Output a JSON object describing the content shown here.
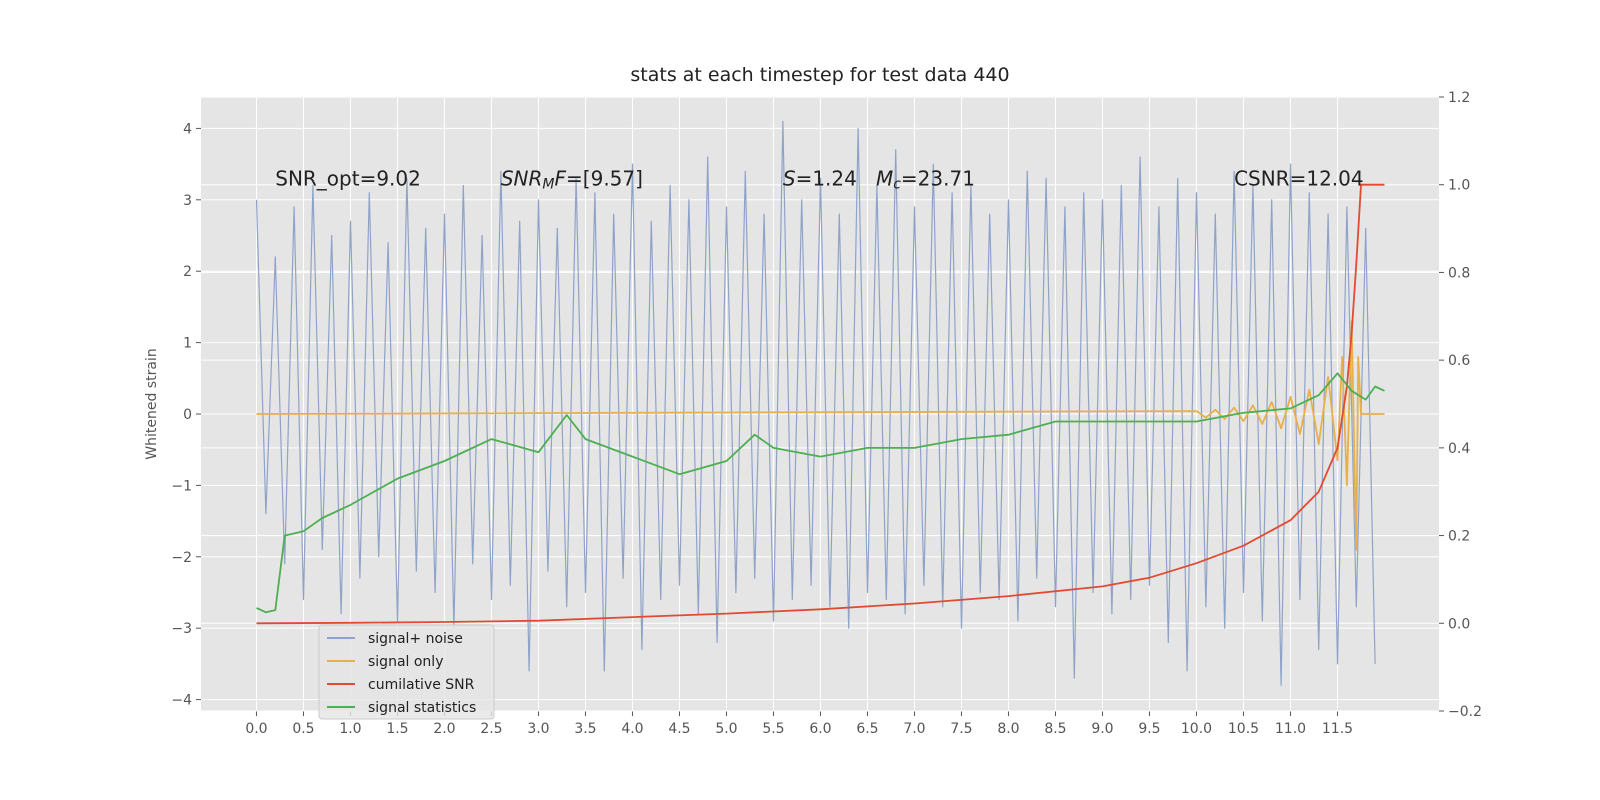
{
  "chart_data": {
    "type": "line",
    "title": "stats at each timestep for test data 440",
    "ylabel": "Whitened strain",
    "xlim": [
      -0.59,
      12.58
    ],
    "ylim": [
      -4.16,
      4.44
    ],
    "y2lim": [
      -0.2,
      1.2
    ],
    "grid": true,
    "legend": "lower left",
    "xticks": [
      {
        "value": 0,
        "label": "0.0"
      },
      0.5,
      {
        "value": 1,
        "label": "1.0"
      },
      1.5,
      {
        "value": 2,
        "label": "2.0"
      },
      2.5,
      {
        "value": 3,
        "label": "3.0"
      },
      3.5,
      {
        "value": 4,
        "label": "4.0"
      },
      4.5,
      {
        "value": 5,
        "label": "5.0"
      },
      5.5,
      {
        "value": 6,
        "label": "6.0"
      },
      6.5,
      {
        "value": 7,
        "label": "7.0"
      },
      7.5,
      {
        "value": 8,
        "label": "8.0"
      },
      8.5,
      {
        "value": 9,
        "label": "9.0"
      },
      9.5,
      {
        "value": 10,
        "label": "10.0"
      },
      10.5,
      {
        "value": 11,
        "label": "11.0"
      },
      11.5
    ],
    "yticks": [
      {
        "value": -4,
        "label": "−4"
      },
      {
        "value": -3,
        "label": "−3"
      },
      {
        "value": -2,
        "label": "−2"
      },
      {
        "value": -1,
        "label": "−1"
      },
      0,
      1,
      2,
      3,
      4
    ],
    "y2ticks": [
      {
        "value": -0.2,
        "label": "−0.2"
      },
      {
        "value": 0,
        "label": "0.0"
      },
      0.2,
      0.4,
      0.6,
      0.8,
      {
        "value": 1,
        "label": "1.0"
      },
      1.2
    ],
    "annotations": [
      {
        "x": 0.2,
        "y": 3.2,
        "parts": [
          {
            "text": "SNR_opt=9.02"
          }
        ]
      },
      {
        "x": 2.6,
        "y": 3.2,
        "parts": [
          {
            "text": "SNR",
            "italic": true
          },
          {
            "text": "M",
            "italic": true,
            "sub": true
          },
          {
            "text": "F",
            "italic": true
          },
          {
            "text": "=[9.57]"
          }
        ]
      },
      {
        "x": 5.6,
        "y": 3.2,
        "parts": [
          {
            "text": "S",
            "italic": true
          },
          {
            "text": "=1.24   "
          },
          {
            "text": "M",
            "italic": true
          },
          {
            "text": "c",
            "italic": true,
            "sub": true
          },
          {
            "text": "=23.71"
          }
        ]
      },
      {
        "x": 10.4,
        "y": 3.2,
        "parts": [
          {
            "text": "CSNR=12.04"
          }
        ]
      }
    ],
    "series": [
      {
        "name": "signal+ noise",
        "color": "#8fa3c8",
        "axis": "y",
        "x": [
          0,
          0.1,
          0.2,
          0.3,
          0.4,
          0.5,
          0.6,
          0.7,
          0.8,
          0.9,
          1,
          1.1,
          1.2,
          1.3,
          1.4,
          1.5,
          1.6,
          1.7,
          1.8,
          1.9,
          2,
          2.1,
          2.2,
          2.3,
          2.4,
          2.5,
          2.6,
          2.7,
          2.8,
          2.9,
          3,
          3.1,
          3.2,
          3.3,
          3.4,
          3.5,
          3.6,
          3.7,
          3.8,
          3.9,
          4,
          4.1,
          4.2,
          4.3,
          4.4,
          4.5,
          4.6,
          4.7,
          4.8,
          4.9,
          5,
          5.1,
          5.2,
          5.3,
          5.4,
          5.5,
          5.6,
          5.7,
          5.8,
          5.9,
          6,
          6.1,
          6.2,
          6.3,
          6.4,
          6.5,
          6.6,
          6.7,
          6.8,
          6.9,
          7,
          7.1,
          7.2,
          7.3,
          7.4,
          7.5,
          7.6,
          7.7,
          7.8,
          7.9,
          8,
          8.1,
          8.2,
          8.3,
          8.4,
          8.5,
          8.6,
          8.7,
          8.8,
          8.9,
          9,
          9.1,
          9.2,
          9.3,
          9.4,
          9.5,
          9.6,
          9.7,
          9.8,
          9.9,
          10,
          10.1,
          10.2,
          10.3,
          10.4,
          10.5,
          10.6,
          10.7,
          10.8,
          10.9,
          11,
          11.1,
          11.2,
          11.3,
          11.4,
          11.5,
          11.6,
          11.7,
          11.8,
          11.9
        ],
        "values": [
          3.0,
          -1.4,
          2.2,
          -2.1,
          2.9,
          -2.6,
          3.2,
          -1.9,
          2.5,
          -2.8,
          2.7,
          -2.3,
          3.1,
          -2.0,
          2.4,
          -2.9,
          3.3,
          -2.2,
          2.6,
          -2.5,
          2.8,
          -3.0,
          3.2,
          -2.1,
          2.5,
          -2.6,
          3.4,
          -2.4,
          2.7,
          -3.6,
          3.0,
          -2.2,
          2.6,
          -2.7,
          3.3,
          -2.5,
          3.1,
          -3.6,
          2.8,
          -2.3,
          3.5,
          -3.3,
          2.7,
          -2.6,
          3.2,
          -2.4,
          3.0,
          -2.8,
          3.6,
          -3.2,
          2.9,
          -2.5,
          3.4,
          -2.3,
          2.8,
          -2.9,
          4.1,
          -2.6,
          3.0,
          -2.4,
          3.3,
          -2.7,
          2.8,
          -3.0,
          4.0,
          -2.5,
          3.2,
          -2.6,
          3.7,
          -2.8,
          2.9,
          -2.4,
          3.5,
          -2.7,
          3.1,
          -3.0,
          3.2,
          -2.5,
          2.8,
          -2.6,
          3.0,
          -2.9,
          3.4,
          -2.3,
          3.3,
          -2.7,
          2.9,
          -3.7,
          3.1,
          -2.5,
          3.0,
          -2.8,
          3.2,
          -2.6,
          3.6,
          -2.4,
          2.9,
          -3.2,
          3.3,
          -3.6,
          3.1,
          -2.7,
          2.8,
          -3.0,
          3.4,
          -2.5,
          3.2,
          -2.9,
          3.0,
          -3.8,
          3.5,
          -2.6,
          3.1,
          -3.3,
          2.8,
          -3.5,
          2.9,
          -2.7,
          2.6,
          -3.5
        ]
      },
      {
        "name": "signal only",
        "color": "#e8b04a",
        "axis": "y",
        "x": [
          0,
          10,
          10.1,
          10.2,
          10.3,
          10.4,
          10.5,
          10.6,
          10.7,
          10.8,
          10.9,
          11,
          11.1,
          11.2,
          11.3,
          11.4,
          11.5,
          11.55,
          11.6,
          11.65,
          11.7,
          11.72,
          11.75,
          12
        ],
        "values": [
          0,
          0.04,
          -0.05,
          0.06,
          -0.07,
          0.09,
          -0.1,
          0.12,
          -0.14,
          0.17,
          -0.2,
          0.24,
          -0.28,
          0.34,
          -0.42,
          0.52,
          -0.65,
          0.8,
          -1.0,
          1.3,
          -1.9,
          0.8,
          0,
          0
        ]
      },
      {
        "name": "cumilative SNR",
        "color": "#e24a33",
        "axis": "y2",
        "x": [
          0,
          1,
          2,
          3,
          4,
          5,
          6,
          7,
          8,
          9,
          9.5,
          10,
          10.5,
          11,
          11.3,
          11.5,
          11.6,
          11.65,
          11.7,
          11.75,
          12
        ],
        "values": [
          0,
          0.001,
          0.003,
          0.006,
          0.014,
          0.022,
          0.032,
          0.045,
          0.062,
          0.084,
          0.104,
          0.137,
          0.177,
          0.235,
          0.3,
          0.4,
          0.54,
          0.66,
          0.82,
          1.0,
          1.0
        ]
      },
      {
        "name": "signal statistics",
        "color": "#4caf50",
        "axis": "y2",
        "x": [
          0,
          0.1,
          0.2,
          0.3,
          0.5,
          0.7,
          1,
          1.5,
          2,
          2.5,
          3,
          3.3,
          3.5,
          4,
          4.5,
          5,
          5.3,
          5.5,
          6,
          6.5,
          7,
          7.5,
          8,
          8.5,
          9,
          9.5,
          10,
          10.5,
          11,
          11.3,
          11.5,
          11.65,
          11.8,
          11.9,
          12
        ],
        "values": [
          0.035,
          0.025,
          0.03,
          0.2,
          0.21,
          0.24,
          0.27,
          0.33,
          0.37,
          0.42,
          0.39,
          0.475,
          0.42,
          0.38,
          0.34,
          0.37,
          0.43,
          0.4,
          0.38,
          0.4,
          0.4,
          0.42,
          0.43,
          0.46,
          0.46,
          0.46,
          0.46,
          0.48,
          0.49,
          0.52,
          0.57,
          0.53,
          0.51,
          0.54,
          0.53
        ]
      }
    ]
  }
}
